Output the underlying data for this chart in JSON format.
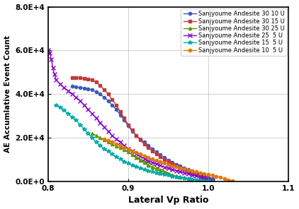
{
  "xlabel": "Lateral Vp Ratio",
  "ylabel": "AE Accumlative Event Count",
  "xlim": [
    0.8,
    1.1
  ],
  "ylim": [
    0,
    80000
  ],
  "xticks": [
    0.8,
    0.9,
    1.0,
    1.1
  ],
  "yticks": [
    0,
    20000,
    40000,
    60000,
    80000
  ],
  "series": [
    {
      "label": "Sanjyoume Andesite 30 10 U",
      "color": "#3a5abf",
      "marker": "o",
      "markersize": 3,
      "linewidth": 1.0,
      "x": [
        0.83,
        0.835,
        0.84,
        0.845,
        0.85,
        0.855,
        0.86,
        0.865,
        0.87,
        0.875,
        0.88,
        0.885,
        0.89,
        0.895,
        0.9,
        0.905,
        0.91,
        0.915,
        0.92,
        0.925,
        0.93,
        0.935,
        0.94,
        0.945,
        0.95,
        0.955,
        0.96,
        0.965,
        0.97,
        0.975,
        0.98,
        0.985,
        0.99,
        0.995,
        1.0,
        1.005
      ],
      "y": [
        43500,
        43200,
        43000,
        42800,
        42500,
        42000,
        41000,
        40000,
        38500,
        37000,
        35000,
        33000,
        30500,
        28000,
        25500,
        23000,
        21000,
        19500,
        18000,
        16500,
        15000,
        13500,
        12200,
        11000,
        9800,
        8800,
        7800,
        7000,
        6200,
        5500,
        4800,
        4200,
        3500,
        2800,
        2000,
        1200
      ]
    },
    {
      "label": "Sanjyoume Andesite 30 15 U",
      "color": "#bf3a3a",
      "marker": "s",
      "markersize": 3,
      "linewidth": 1.0,
      "x": [
        0.83,
        0.835,
        0.84,
        0.845,
        0.85,
        0.855,
        0.86,
        0.865,
        0.87,
        0.875,
        0.88,
        0.885,
        0.89,
        0.895,
        0.9,
        0.905,
        0.91,
        0.915,
        0.92,
        0.925,
        0.93,
        0.935,
        0.94,
        0.945,
        0.95,
        0.955,
        0.96,
        0.965,
        0.97,
        0.975,
        0.98,
        0.985,
        0.99,
        0.995,
        1.0,
        1.005
      ],
      "y": [
        47500,
        47500,
        47400,
        47200,
        47000,
        46500,
        45500,
        44000,
        42000,
        40000,
        37500,
        35000,
        32000,
        29000,
        26000,
        23500,
        21000,
        19000,
        17000,
        15500,
        14000,
        12500,
        11200,
        10000,
        9000,
        8000,
        7000,
        6200,
        5400,
        4600,
        3800,
        3100,
        2400,
        1700,
        1000,
        400
      ]
    },
    {
      "label": "Sanjyoume Andesite 30 25 U",
      "color": "#5a9900",
      "marker": "^",
      "markersize": 3,
      "linewidth": 1.0,
      "x": [
        0.855,
        0.86,
        0.865,
        0.87,
        0.875,
        0.88,
        0.885,
        0.89,
        0.895,
        0.9,
        0.905,
        0.91,
        0.915,
        0.92,
        0.925,
        0.93,
        0.935,
        0.94,
        0.945,
        0.95,
        0.955,
        0.905,
        0.91,
        0.915,
        0.92,
        0.925,
        0.93,
        0.935,
        0.94,
        0.945,
        0.95,
        0.955,
        0.96,
        0.965,
        0.97,
        0.975,
        0.98,
        0.985,
        0.99,
        0.995,
        1.0,
        1.005
      ],
      "y": [
        22000,
        21000,
        20000,
        19000,
        18000,
        17000,
        16200,
        15400,
        14600,
        13500,
        12200,
        11000,
        9800,
        8600,
        7500,
        6500,
        5800,
        5000,
        4200,
        3600,
        3000,
        12200,
        11000,
        9800,
        8600,
        7500,
        6500,
        5800,
        5000,
        4200,
        3600,
        3000,
        2500,
        2100,
        1700,
        1400,
        1100,
        800,
        600,
        400,
        200,
        100
      ]
    },
    {
      "label": "Sanjyoume Andesite 25  5 U",
      "color": "#8800cc",
      "marker": "x",
      "markersize": 4,
      "linewidth": 1.0,
      "x": [
        0.8,
        0.802,
        0.804,
        0.806,
        0.808,
        0.81,
        0.815,
        0.82,
        0.825,
        0.83,
        0.835,
        0.84,
        0.845,
        0.85,
        0.855,
        0.86,
        0.865,
        0.87,
        0.875,
        0.88,
        0.885,
        0.89,
        0.895,
        0.9,
        0.905,
        0.91,
        0.915,
        0.92,
        0.925,
        0.93,
        0.935,
        0.94,
        0.945,
        0.95,
        0.955,
        0.96,
        0.965,
        0.97,
        0.975,
        0.98,
        0.985,
        0.99,
        0.995,
        1.0,
        1.005
      ],
      "y": [
        60000,
        59000,
        56000,
        52000,
        49000,
        46500,
        44500,
        43000,
        41500,
        40000,
        38500,
        37000,
        35000,
        33000,
        31000,
        29000,
        27000,
        25000,
        23000,
        21000,
        19500,
        18000,
        16500,
        15000,
        13800,
        12500,
        11500,
        10500,
        9500,
        8800,
        8000,
        7300,
        6600,
        6000,
        5500,
        5000,
        4500,
        4000,
        3500,
        3000,
        2500,
        2000,
        1500,
        900,
        400
      ]
    },
    {
      "label": "Sanjyoume Andesite 15  5 U",
      "color": "#00aaaa",
      "marker": "*",
      "markersize": 4,
      "linewidth": 1.0,
      "x": [
        0.81,
        0.815,
        0.82,
        0.825,
        0.83,
        0.835,
        0.84,
        0.845,
        0.85,
        0.855,
        0.86,
        0.865,
        0.87,
        0.875,
        0.88,
        0.885,
        0.89,
        0.895,
        0.9,
        0.905,
        0.91,
        0.915,
        0.92,
        0.925,
        0.93,
        0.935,
        0.94,
        0.945,
        0.95,
        0.955,
        0.96,
        0.965,
        0.97,
        0.975,
        0.98,
        0.985,
        0.99,
        0.995,
        1.0,
        1.005
      ],
      "y": [
        35000,
        34000,
        32500,
        31000,
        29500,
        28000,
        26000,
        24000,
        22000,
        20000,
        18000,
        16500,
        15000,
        13800,
        12500,
        11300,
        10200,
        9200,
        8300,
        7500,
        6800,
        6200,
        5600,
        5000,
        4500,
        4000,
        3600,
        3200,
        2800,
        2400,
        2100,
        1800,
        1500,
        1200,
        1000,
        800,
        600,
        400,
        200,
        50
      ]
    },
    {
      "label": "Sanjyoume Andesite 10  5 U",
      "color": "#e07800",
      "marker": "o",
      "markersize": 3,
      "linewidth": 1.0,
      "x": [
        0.87,
        0.875,
        0.88,
        0.885,
        0.89,
        0.895,
        0.9,
        0.905,
        0.91,
        0.915,
        0.92,
        0.925,
        0.93,
        0.935,
        0.94,
        0.945,
        0.95,
        0.955,
        0.96,
        0.965,
        0.97,
        0.975,
        0.98,
        0.985,
        0.99,
        0.995,
        1.0,
        1.005,
        1.01,
        1.015,
        1.02,
        1.025,
        1.03
      ],
      "y": [
        19500,
        18800,
        18000,
        17200,
        16400,
        15600,
        14800,
        14000,
        13200,
        12500,
        11800,
        11000,
        10300,
        9600,
        9000,
        8400,
        7800,
        7200,
        6700,
        6200,
        5700,
        5200,
        4800,
        4400,
        4000,
        3600,
        3200,
        2800,
        2300,
        1800,
        1300,
        800,
        300
      ]
    }
  ]
}
